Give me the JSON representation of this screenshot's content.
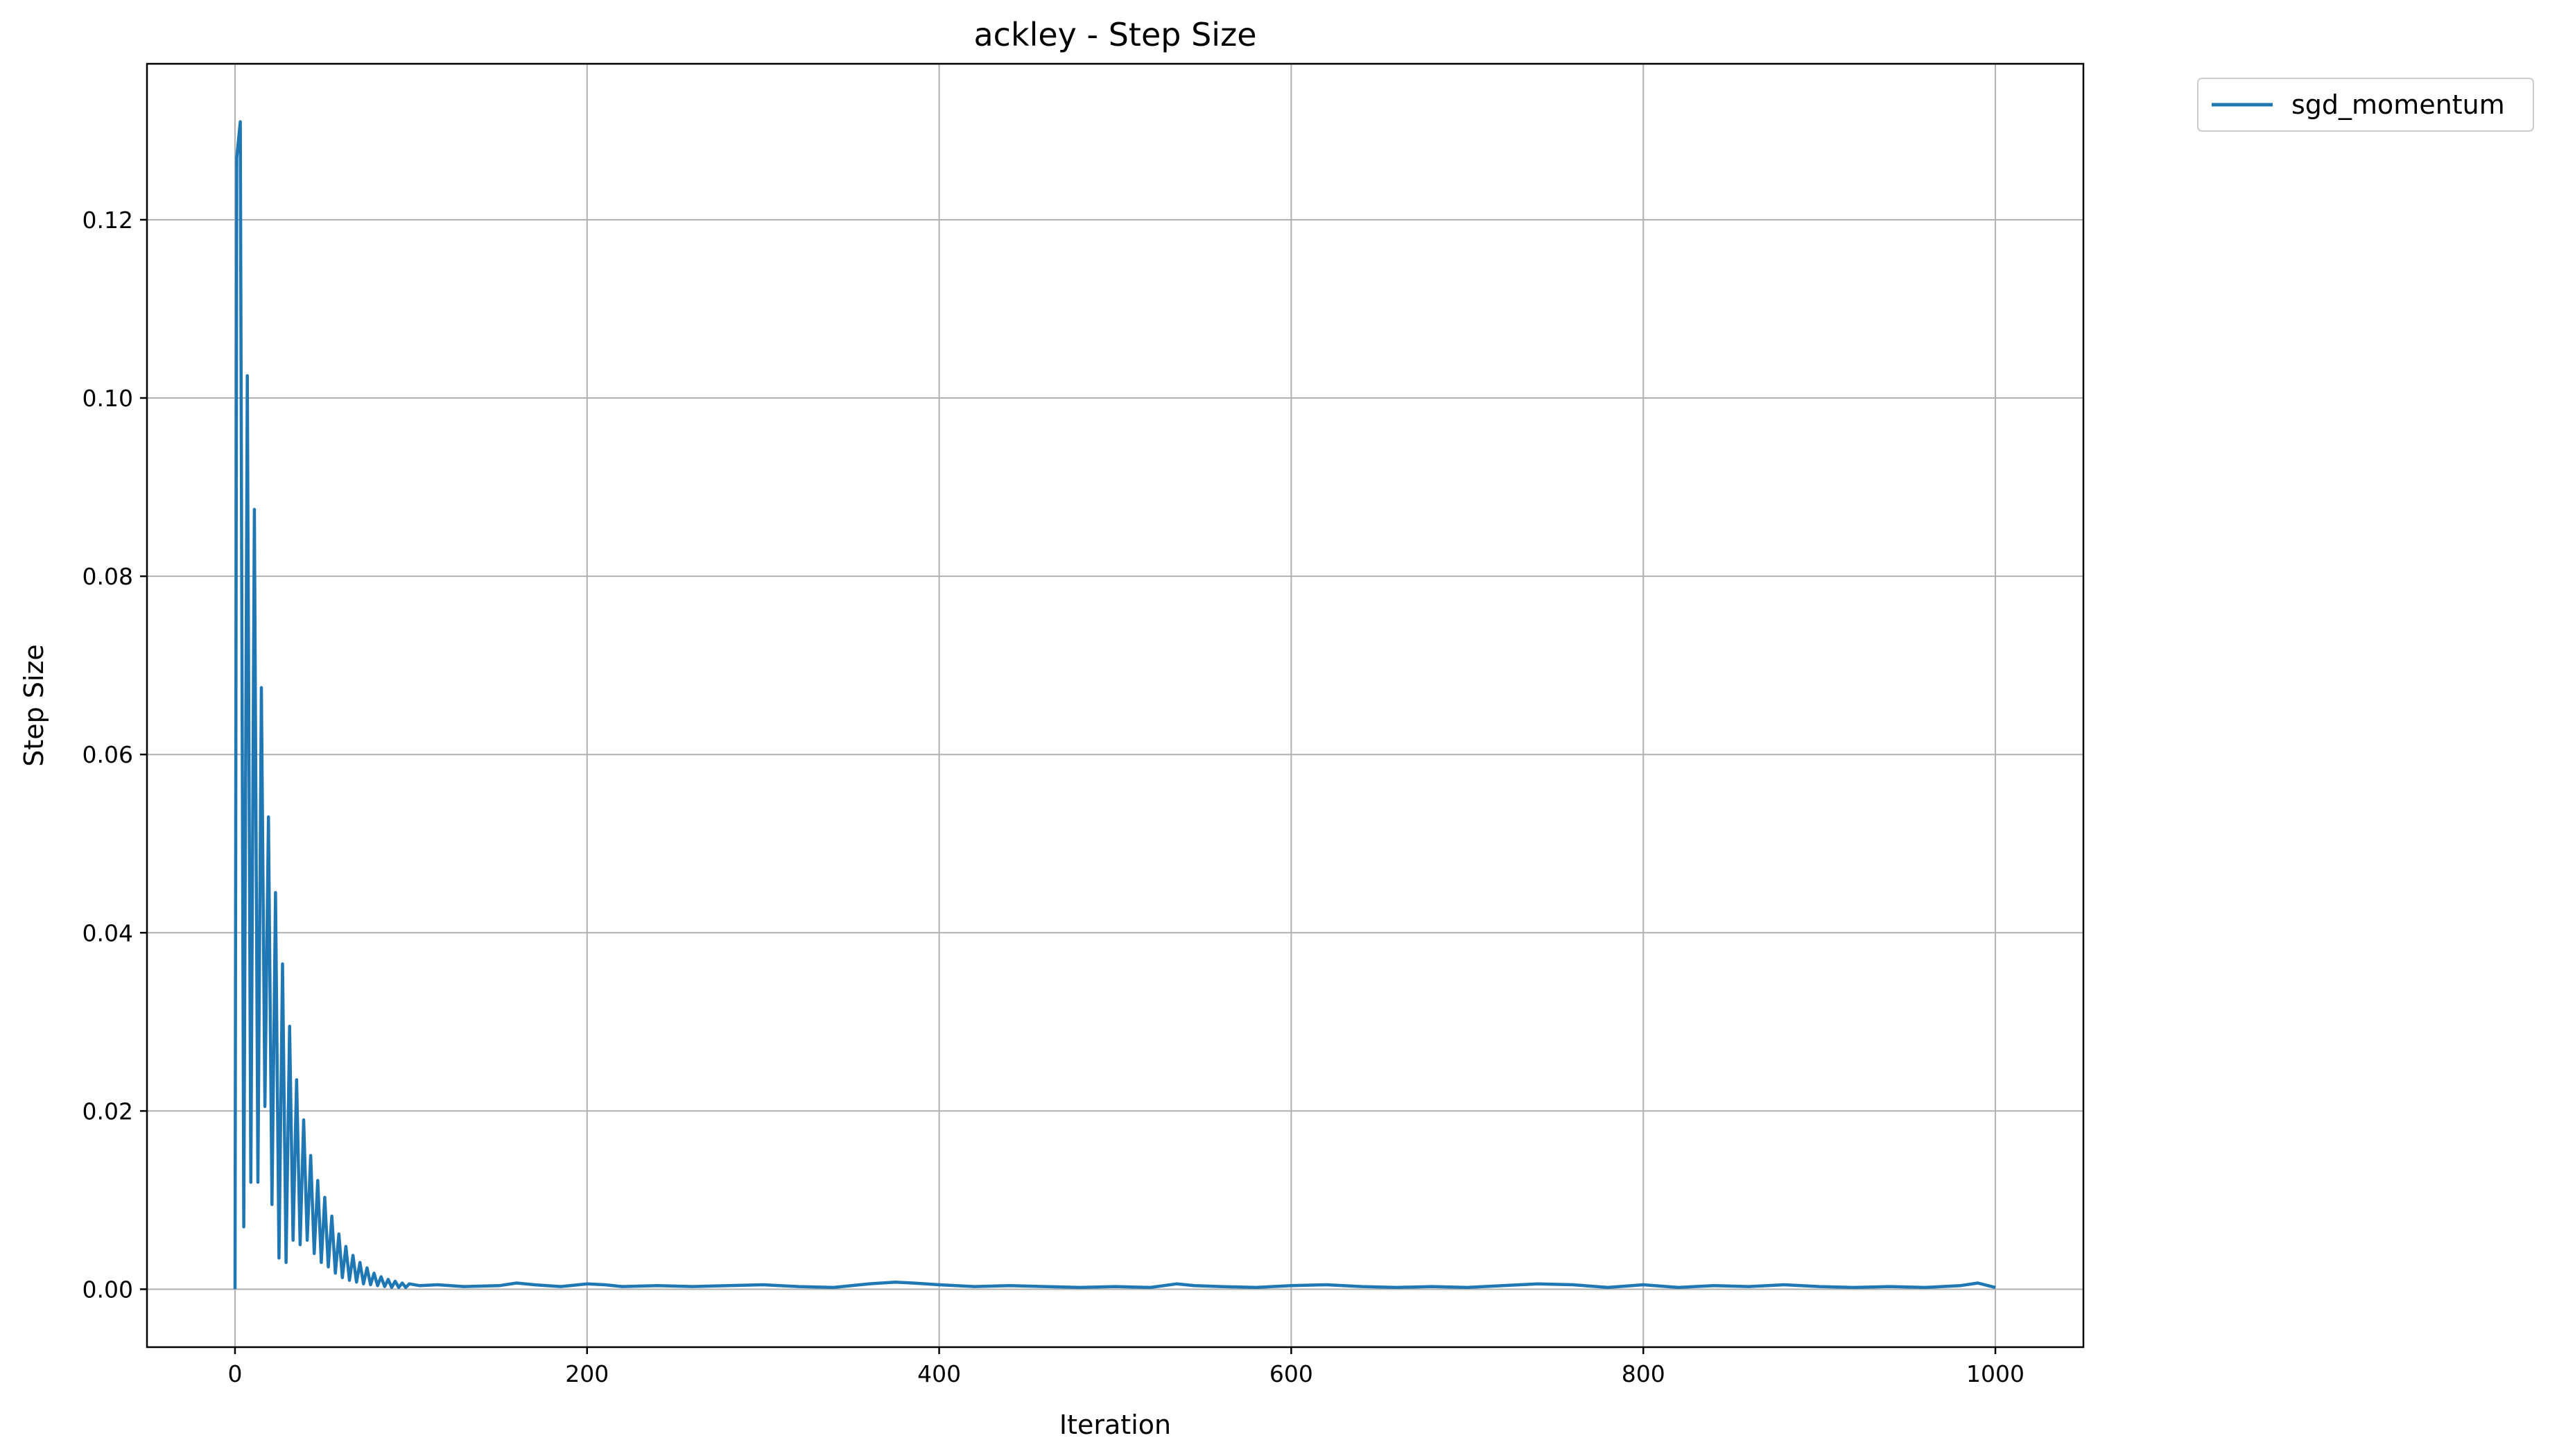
{
  "chart_data": {
    "type": "line",
    "title": "ackley - Step Size",
    "xlabel": "Iteration",
    "ylabel": "Step Size",
    "xlim": [
      -50,
      1050
    ],
    "ylim": [
      -0.0065,
      0.1375
    ],
    "xticks": [
      0,
      200,
      400,
      600,
      800,
      1000
    ],
    "xtick_labels": [
      "0",
      "200",
      "400",
      "600",
      "800",
      "1000"
    ],
    "yticks": [
      0.0,
      0.02,
      0.04,
      0.06,
      0.08,
      0.1,
      0.12
    ],
    "ytick_labels": [
      "0.00",
      "0.02",
      "0.04",
      "0.06",
      "0.08",
      "0.10",
      "0.12"
    ],
    "grid": true,
    "legend_position": "outside-top-right",
    "series": [
      {
        "name": "sgd_momentum",
        "color": "#1f77b4",
        "x": [
          0,
          1,
          3,
          5,
          7,
          9,
          11,
          13,
          15,
          17,
          19,
          21,
          23,
          25,
          27,
          29,
          31,
          33,
          35,
          37,
          39,
          41,
          43,
          45,
          47,
          49,
          51,
          53,
          55,
          57,
          59,
          61,
          63,
          65,
          67,
          69,
          71,
          73,
          75,
          77,
          79,
          81,
          83,
          85,
          87,
          89,
          91,
          93,
          95,
          97,
          99,
          105,
          115,
          130,
          150,
          160,
          170,
          185,
          200,
          210,
          220,
          240,
          260,
          280,
          300,
          320,
          340,
          360,
          375,
          385,
          400,
          420,
          440,
          460,
          480,
          500,
          520,
          535,
          545,
          560,
          580,
          600,
          620,
          640,
          660,
          680,
          700,
          720,
          740,
          760,
          780,
          800,
          820,
          840,
          860,
          880,
          900,
          920,
          940,
          960,
          980,
          990,
          1000
        ],
        "y": [
          0.0,
          0.127,
          0.131,
          0.007,
          0.1025,
          0.012,
          0.0875,
          0.012,
          0.0675,
          0.0205,
          0.053,
          0.0095,
          0.0445,
          0.0035,
          0.0365,
          0.003,
          0.0295,
          0.0055,
          0.0235,
          0.005,
          0.019,
          0.0055,
          0.015,
          0.004,
          0.0122,
          0.003,
          0.0103,
          0.0025,
          0.0082,
          0.0018,
          0.0062,
          0.0013,
          0.0048,
          0.001,
          0.0038,
          0.0008,
          0.003,
          0.0006,
          0.0024,
          0.0005,
          0.0018,
          0.0004,
          0.0014,
          0.0003,
          0.0011,
          0.0002,
          0.0009,
          0.0002,
          0.0007,
          0.0002,
          0.0006,
          0.0004,
          0.0005,
          0.0003,
          0.0004,
          0.0007,
          0.0005,
          0.0003,
          0.0006,
          0.0005,
          0.0003,
          0.0004,
          0.0003,
          0.0004,
          0.0005,
          0.0003,
          0.0002,
          0.0006,
          0.0008,
          0.0007,
          0.0005,
          0.0003,
          0.0004,
          0.0003,
          0.0002,
          0.0003,
          0.0002,
          0.0006,
          0.0004,
          0.0003,
          0.0002,
          0.0004,
          0.0005,
          0.0003,
          0.0002,
          0.0003,
          0.0002,
          0.0004,
          0.0006,
          0.0005,
          0.0002,
          0.0005,
          0.0002,
          0.0004,
          0.0003,
          0.0005,
          0.0003,
          0.0002,
          0.0003,
          0.0002,
          0.0004,
          0.0007,
          0.0002
        ]
      }
    ]
  }
}
